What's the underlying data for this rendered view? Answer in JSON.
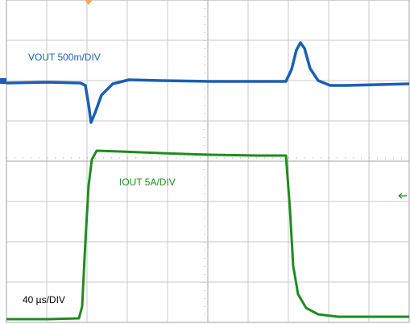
{
  "traces": {
    "vout_label": "VOUT 500m/DIV",
    "iout_label": "IOUT 5A/DIV",
    "timebase_label": "40 µs/DIV"
  }
}
